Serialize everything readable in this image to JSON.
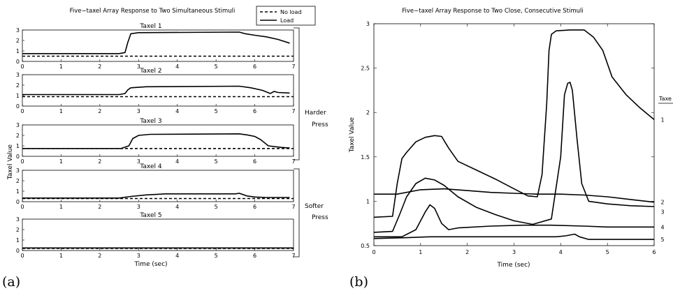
{
  "figure_labels": {
    "a": "(a)",
    "b": "(b)"
  },
  "chart_data": [
    {
      "type": "line",
      "title": "Five−taxel Array Response to Two Simultaneous Stimuli",
      "xlabel": "Time (sec)",
      "ylabel": "Taxel Value",
      "legend": {
        "placement": "top-right",
        "entries": [
          "No load",
          "Load"
        ]
      },
      "bracket_labels": [
        "Harder Press",
        "Softer Press"
      ],
      "xlim": [
        0,
        7
      ],
      "x_ticks": [
        "0",
        "1",
        "2",
        "3",
        "4",
        "5",
        "6",
        "7"
      ],
      "panels": [
        {
          "title": "Taxel 1",
          "ylim": [
            0,
            3
          ],
          "y_ticks": [
            "0",
            "1",
            "2",
            "3"
          ],
          "series": [
            {
              "name": "No load",
              "style": "dashed",
              "x": [
                0,
                7
              ],
              "y": [
                0.5,
                0.5
              ]
            },
            {
              "name": "Load",
              "style": "solid",
              "x": [
                0,
                2.5,
                2.65,
                2.72,
                2.8,
                3.0,
                5.6,
                5.75,
                6.0,
                6.3,
                6.6,
                6.9
              ],
              "y": [
                0.75,
                0.75,
                0.85,
                1.8,
                2.65,
                2.75,
                2.8,
                2.65,
                2.5,
                2.35,
                2.1,
                1.75
              ]
            }
          ]
        },
        {
          "title": "Taxel 2",
          "ylim": [
            0,
            3
          ],
          "y_ticks": [
            "0",
            "1",
            "2",
            "3"
          ],
          "series": [
            {
              "name": "No load",
              "style": "dashed",
              "x": [
                0,
                7
              ],
              "y": [
                0.9,
                0.9
              ]
            },
            {
              "name": "Load",
              "style": "solid",
              "x": [
                0,
                2.5,
                2.65,
                2.72,
                2.8,
                3.2,
                5.6,
                5.9,
                6.2,
                6.4,
                6.5,
                6.6,
                6.9
              ],
              "y": [
                1.1,
                1.1,
                1.2,
                1.55,
                1.75,
                1.85,
                1.9,
                1.75,
                1.5,
                1.2,
                1.4,
                1.3,
                1.25
              ]
            }
          ]
        },
        {
          "title": "Taxel 3",
          "ylim": [
            0,
            3
          ],
          "y_ticks": [
            "0",
            "1",
            "2",
            "3"
          ],
          "series": [
            {
              "name": "No load",
              "style": "dashed",
              "x": [
                0,
                7
              ],
              "y": [
                0.75,
                0.75
              ]
            },
            {
              "name": "Load",
              "style": "solid",
              "x": [
                0,
                2.55,
                2.75,
                2.85,
                3.0,
                3.3,
                5.6,
                5.8,
                6.0,
                6.15,
                6.35,
                6.7,
                6.9
              ],
              "y": [
                0.75,
                0.75,
                1.0,
                1.7,
                2.0,
                2.1,
                2.15,
                2.05,
                1.9,
                1.6,
                1.0,
                0.85,
                0.8
              ]
            }
          ]
        },
        {
          "title": "Taxel 4",
          "ylim": [
            0,
            3
          ],
          "y_ticks": [
            "0",
            "1",
            "2",
            "3"
          ],
          "series": [
            {
              "name": "No load",
              "style": "dashed",
              "x": [
                0,
                7
              ],
              "y": [
                0.3,
                0.3
              ]
            },
            {
              "name": "Load",
              "style": "solid",
              "x": [
                0,
                2.5,
                2.8,
                3.2,
                3.7,
                5.5,
                5.6,
                5.8,
                6.0,
                6.3,
                6.9
              ],
              "y": [
                0.35,
                0.35,
                0.5,
                0.65,
                0.75,
                0.75,
                0.8,
                0.55,
                0.45,
                0.4,
                0.4
              ]
            }
          ]
        },
        {
          "title": "Taxel 5",
          "ylim": [
            0,
            3
          ],
          "y_ticks": [
            "0",
            "1",
            "2",
            "3"
          ],
          "series": [
            {
              "name": "No load",
              "style": "dashed",
              "x": [
                0,
                7
              ],
              "y": [
                0.2,
                0.2
              ]
            },
            {
              "name": "Load",
              "style": "solid",
              "x": [
                0,
                7
              ],
              "y": [
                0.25,
                0.25
              ]
            }
          ]
        }
      ]
    },
    {
      "type": "line",
      "title": "Five−taxel Array Response to Two Close, Consecutive Stimuli",
      "xlabel": "Time (sec)",
      "ylabel": "Taxel Value",
      "legend_title": "Taxe",
      "xlim": [
        0,
        6
      ],
      "ylim": [
        0.5,
        3
      ],
      "x_ticks": [
        "0",
        "1",
        "2",
        "3",
        "4",
        "5",
        "6"
      ],
      "y_ticks": [
        "0.5",
        "1",
        "1.5",
        "2",
        "2.5",
        "3"
      ],
      "series": [
        {
          "name": "1",
          "x": [
            0,
            0.4,
            0.5,
            0.6,
            0.7,
            0.9,
            1.1,
            1.3,
            1.45,
            1.6,
            1.8,
            2.2,
            2.6,
            3.0,
            3.3,
            3.5,
            3.6,
            3.7,
            3.75,
            3.8,
            3.9,
            4.2,
            4.5,
            4.7,
            4.9,
            5.1,
            5.4,
            5.7,
            6.0
          ],
          "y": [
            0.82,
            0.83,
            1.2,
            1.48,
            1.55,
            1.67,
            1.72,
            1.74,
            1.73,
            1.6,
            1.45,
            1.35,
            1.25,
            1.14,
            1.06,
            1.05,
            1.3,
            2.1,
            2.7,
            2.88,
            2.92,
            2.93,
            2.93,
            2.85,
            2.7,
            2.4,
            2.2,
            2.05,
            1.92
          ]
        },
        {
          "name": "2",
          "x": [
            0,
            0.5,
            1.0,
            1.5,
            2.0,
            2.5,
            3.0,
            3.5,
            4.0,
            4.5,
            5.0,
            5.5,
            6.0
          ],
          "y": [
            1.08,
            1.08,
            1.13,
            1.14,
            1.12,
            1.1,
            1.09,
            1.08,
            1.08,
            1.07,
            1.05,
            1.02,
            0.99
          ]
        },
        {
          "name": "3",
          "x": [
            0,
            0.4,
            0.55,
            0.7,
            0.9,
            1.1,
            1.3,
            1.5,
            1.8,
            2.2,
            2.6,
            3.0,
            3.4,
            3.8,
            4.0,
            4.08,
            4.15,
            4.2,
            4.25,
            4.35,
            4.45,
            4.6,
            5.0,
            5.5,
            6.0
          ],
          "y": [
            0.65,
            0.66,
            0.85,
            1.05,
            1.2,
            1.26,
            1.24,
            1.18,
            1.05,
            0.93,
            0.85,
            0.78,
            0.74,
            0.8,
            1.5,
            2.2,
            2.33,
            2.34,
            2.25,
            1.7,
            1.2,
            1.0,
            0.97,
            0.95,
            0.94
          ]
        },
        {
          "name": "4",
          "x": [
            0,
            0.6,
            0.9,
            1.1,
            1.2,
            1.3,
            1.45,
            1.6,
            1.8,
            2.5,
            3.2,
            3.8,
            4.5,
            5.0,
            6.0
          ],
          "y": [
            0.6,
            0.6,
            0.68,
            0.88,
            0.96,
            0.92,
            0.75,
            0.68,
            0.7,
            0.72,
            0.73,
            0.73,
            0.72,
            0.71,
            0.71
          ]
        },
        {
          "name": "5",
          "x": [
            0,
            0.7,
            1.2,
            1.7,
            2.5,
            3.3,
            3.9,
            4.1,
            4.3,
            4.4,
            4.6,
            5.0,
            6.0
          ],
          "y": [
            0.58,
            0.59,
            0.6,
            0.6,
            0.6,
            0.6,
            0.6,
            0.61,
            0.63,
            0.6,
            0.57,
            0.57,
            0.57
          ]
        }
      ]
    }
  ]
}
